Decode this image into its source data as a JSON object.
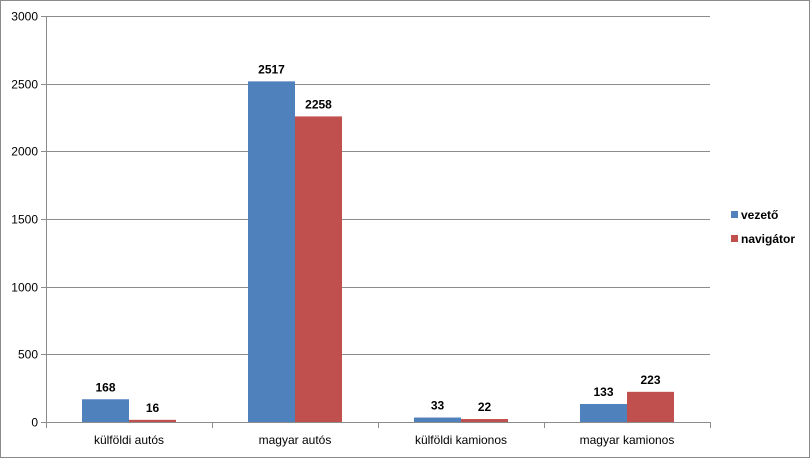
{
  "chart_data": {
    "type": "bar",
    "title": "",
    "xlabel": "",
    "ylabel": "",
    "categories": [
      "külföldi autós",
      "magyar autós",
      "külföldi kamionos",
      "magyar kamionos"
    ],
    "series": [
      {
        "name": "vezető",
        "values": [
          168,
          2517,
          33,
          133
        ],
        "color": "#4f81bd"
      },
      {
        "name": "navigátor",
        "values": [
          16,
          2258,
          22,
          223
        ],
        "color": "#c0504d"
      }
    ],
    "ylim": [
      0,
      3000
    ],
    "yticks": [
      0,
      500,
      1000,
      1500,
      2000,
      2500,
      3000
    ],
    "grid": true,
    "legend_position": "right",
    "data_labels": true
  }
}
